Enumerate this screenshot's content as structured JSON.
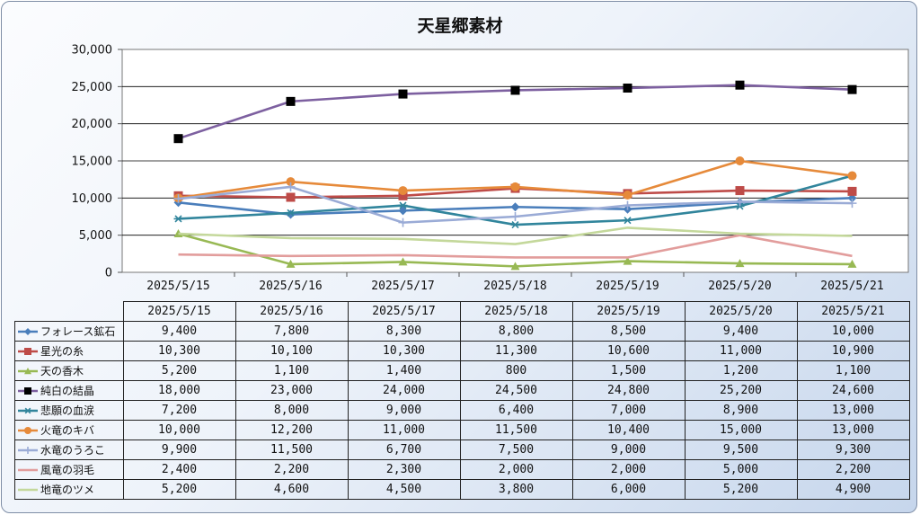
{
  "chart_data": {
    "type": "line",
    "title": "天星郷素材",
    "xlabel": "",
    "ylabel": "",
    "ylim": [
      0,
      30000
    ],
    "ytick_step": 5000,
    "ytick_labels": [
      "0",
      "5,000",
      "10,000",
      "15,000",
      "20,000",
      "25,000",
      "30,000"
    ],
    "grid": "horizontal",
    "legend": "data-table",
    "categories": [
      "2025/5/15",
      "2025/5/16",
      "2025/5/17",
      "2025/5/18",
      "2025/5/19",
      "2025/5/20",
      "2025/5/21"
    ],
    "series": [
      {
        "name": "フォレース鉱石",
        "color": "#4a7ebb",
        "marker": "diamond",
        "values": [
          9400,
          7800,
          8300,
          8800,
          8500,
          9400,
          10000
        ],
        "labels": [
          "9,400",
          "7,800",
          "8,300",
          "8,800",
          "8,500",
          "9,400",
          "10,000"
        ]
      },
      {
        "name": "星光の糸",
        "color": "#be4b48",
        "marker": "square",
        "values": [
          10300,
          10100,
          10300,
          11300,
          10600,
          11000,
          10900
        ],
        "labels": [
          "10,300",
          "10,100",
          "10,300",
          "11,300",
          "10,600",
          "11,000",
          "10,900"
        ]
      },
      {
        "name": "天の香木",
        "color": "#98b954",
        "marker": "triangle",
        "values": [
          5200,
          1100,
          1400,
          800,
          1500,
          1200,
          1100
        ],
        "labels": [
          "5,200",
          "1,100",
          "1,400",
          "800",
          "1,500",
          "1,200",
          "1,100"
        ]
      },
      {
        "name": "純白の結晶",
        "color": "#7d60a0",
        "marker": "blacksquare",
        "values": [
          18000,
          23000,
          24000,
          24500,
          24800,
          25200,
          24600
        ],
        "labels": [
          "18,000",
          "23,000",
          "24,000",
          "24,500",
          "24,800",
          "25,200",
          "24,600"
        ]
      },
      {
        "name": "悲願の血涙",
        "color": "#31859c",
        "marker": "star",
        "values": [
          7200,
          8000,
          9000,
          6400,
          7000,
          8900,
          13000
        ],
        "labels": [
          "7,200",
          "8,000",
          "9,000",
          "6,400",
          "7,000",
          "8,900",
          "13,000"
        ]
      },
      {
        "name": "火竜のキバ",
        "color": "#e68a3a",
        "marker": "circle",
        "values": [
          10000,
          12200,
          11000,
          11500,
          10400,
          15000,
          13000
        ],
        "labels": [
          "10,000",
          "12,200",
          "11,000",
          "11,500",
          "10,400",
          "15,000",
          "13,000"
        ]
      },
      {
        "name": "水竜のうろこ",
        "color": "#9aabd6",
        "marker": "plus",
        "values": [
          9900,
          11500,
          6700,
          7500,
          9000,
          9500,
          9300
        ],
        "labels": [
          "9,900",
          "11,500",
          "6,700",
          "7,500",
          "9,000",
          "9,500",
          "9,300"
        ]
      },
      {
        "name": "風竜の羽毛",
        "color": "#e29d9c",
        "marker": "none",
        "values": [
          2400,
          2200,
          2300,
          2000,
          2000,
          5000,
          2200
        ],
        "labels": [
          "2,400",
          "2,200",
          "2,300",
          "2,000",
          "2,000",
          "5,000",
          "2,200"
        ]
      },
      {
        "name": "地竜のツメ",
        "color": "#c4d89b",
        "marker": "none",
        "values": [
          5200,
          4600,
          4500,
          3800,
          6000,
          5200,
          4900
        ],
        "labels": [
          "5,200",
          "4,600",
          "4,500",
          "3,800",
          "6,000",
          "5,200",
          "4,900"
        ]
      }
    ]
  }
}
